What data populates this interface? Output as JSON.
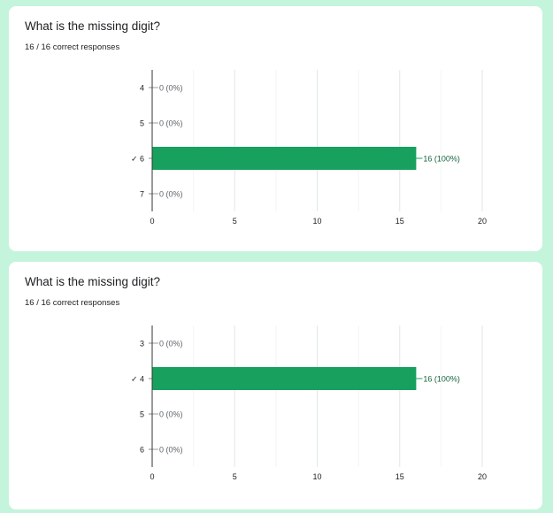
{
  "colors": {
    "background": "#c4f4dc",
    "card": "#ffffff",
    "bar": "#17a05e",
    "value_label_nonzero": "#17643c",
    "value_label_zero": "#5f6368",
    "gridline": "#eceff1",
    "axis": "#333333"
  },
  "questions": [
    {
      "title": "What is the missing digit?",
      "summary": "16 / 16 correct responses"
    },
    {
      "title": "What is the missing digit?",
      "summary": "16 / 16 correct responses"
    }
  ],
  "chart_data": [
    {
      "type": "bar",
      "orientation": "horizontal",
      "title": "What is the missing digit?",
      "categories": [
        "4",
        "5",
        "✓ 6",
        "7"
      ],
      "values": [
        0,
        0,
        16,
        0
      ],
      "value_labels": [
        "0 (0%)",
        "0 (0%)",
        "16 (100%)",
        "0 (0%)"
      ],
      "correct_index": 2,
      "xlim": [
        0,
        20
      ],
      "xticks": [
        "0",
        "5",
        "10",
        "15",
        "20"
      ],
      "grid": true
    },
    {
      "type": "bar",
      "orientation": "horizontal",
      "title": "What is the missing digit?",
      "categories": [
        "3",
        "✓ 4",
        "5",
        "6"
      ],
      "values": [
        0,
        16,
        0,
        0
      ],
      "value_labels": [
        "0 (0%)",
        "16 (100%)",
        "0 (0%)",
        "0 (0%)"
      ],
      "correct_index": 1,
      "xlim": [
        0,
        20
      ],
      "xticks": [
        "0",
        "5",
        "10",
        "15",
        "20"
      ],
      "grid": true
    }
  ]
}
